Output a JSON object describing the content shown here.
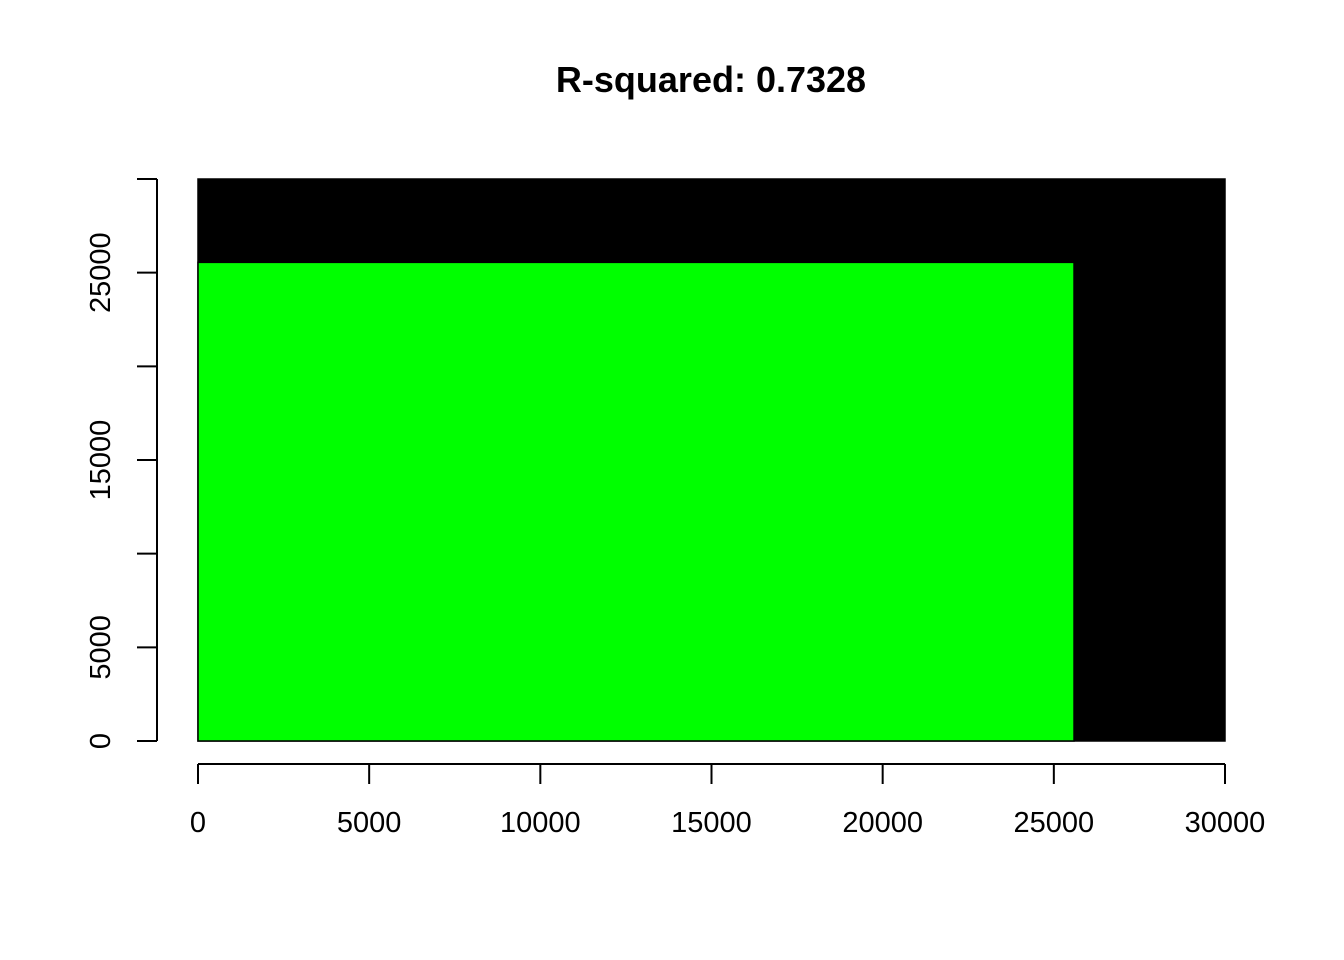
{
  "chart_data": {
    "type": "area",
    "title": "R-squared: 0.7328",
    "xlabel": "",
    "ylabel": "",
    "xlim": [
      0,
      30000
    ],
    "ylim": [
      0,
      30000
    ],
    "x_ticks": [
      0,
      5000,
      10000,
      15000,
      20000,
      25000,
      30000
    ],
    "x_tick_labels": [
      "0",
      "5000",
      "10000",
      "15000",
      "20000",
      "25000",
      "30000"
    ],
    "y_ticks": [
      0,
      5000,
      10000,
      15000,
      20000,
      25000,
      30000
    ],
    "y_tick_labels": [
      "0",
      "5000",
      "",
      "15000",
      "",
      "25000",
      ""
    ],
    "grid": false,
    "legend": "none",
    "series": [
      {
        "values": {
          "x": [
            0,
            30000
          ],
          "y": [
            0,
            30000
          ]
        },
        "color": "#000000"
      },
      {
        "values": {
          "x": [
            0,
            25590
          ],
          "y": [
            0,
            25550
          ]
        },
        "color": "#00ff00"
      }
    ]
  }
}
